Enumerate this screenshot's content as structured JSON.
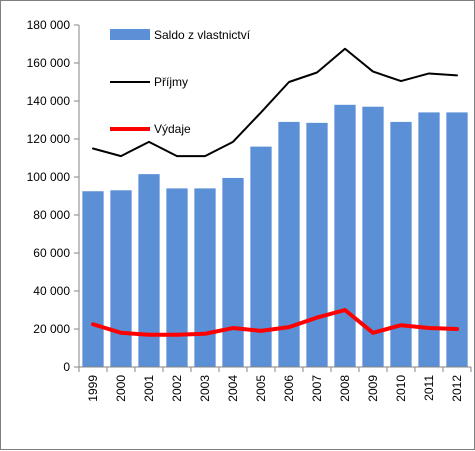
{
  "chart_data": {
    "type": "bar",
    "categories": [
      "1999",
      "2000",
      "2001",
      "2002",
      "2003",
      "2004",
      "2005",
      "2006",
      "2007",
      "2008",
      "2009",
      "2010",
      "2011",
      "2012"
    ],
    "series": [
      {
        "name": "Saldo z vlastnictví",
        "kind": "bar",
        "color": "#5b8fd6",
        "values": [
          92500,
          93000,
          101500,
          94000,
          94000,
          99500,
          116000,
          129000,
          128500,
          138000,
          137000,
          129000,
          134000,
          134000
        ]
      },
      {
        "name": "Příjmy",
        "kind": "line",
        "color": "#000000",
        "values": [
          115000,
          111000,
          118500,
          111000,
          111000,
          118500,
          134000,
          150000,
          155000,
          167500,
          155500,
          150500,
          154500,
          153500
        ]
      },
      {
        "name": "Výdaje",
        "kind": "line",
        "color": "#ff0000",
        "values": [
          22500,
          18000,
          17000,
          17000,
          17500,
          20500,
          19000,
          21000,
          26000,
          30000,
          18000,
          22000,
          20500,
          20000
        ]
      }
    ],
    "yticks": [
      "0",
      "20 000",
      "40 000",
      "60 000",
      "80 000",
      "100 000",
      "120 000",
      "140 000",
      "160 000",
      "180 000"
    ],
    "ylim": [
      0,
      180000
    ],
    "grid": false,
    "legend": "top-left inside plot"
  }
}
